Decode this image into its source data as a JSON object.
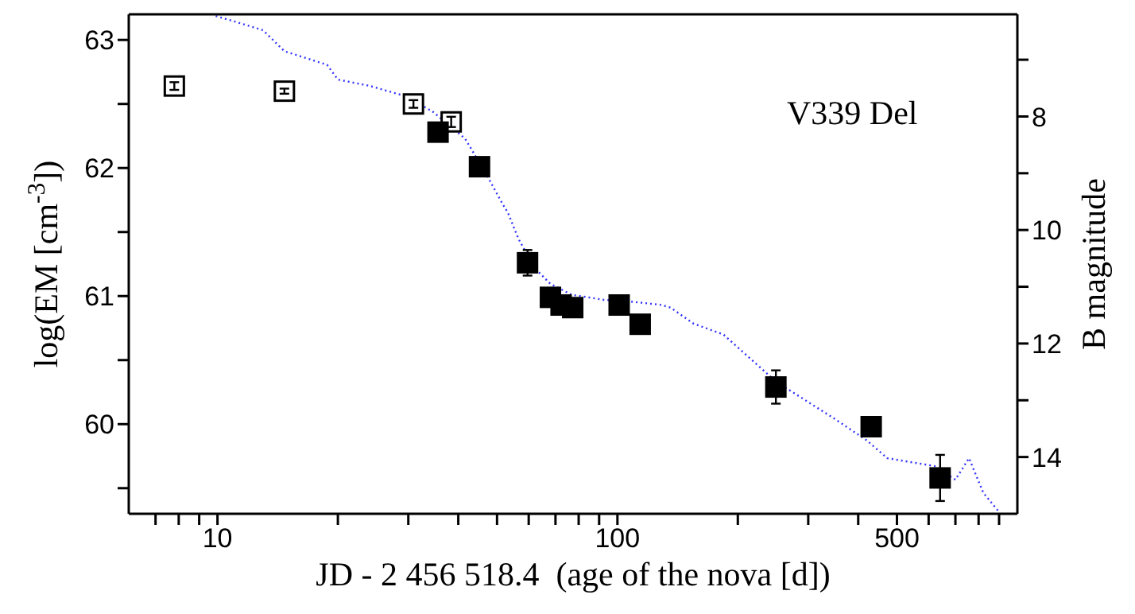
{
  "chart_data": {
    "type": "scatter",
    "xlabel": "JD - 2 456 518.4  (age of the nova [d])",
    "ylabel": "log(EM [cm$^{-3}$])",
    "y2label": "B magnitude",
    "annotations": [
      "V339 Del"
    ],
    "log": "x",
    "grid": false,
    "legend": false,
    "marker": "square",
    "xlim": [
      6,
      1000
    ],
    "xticks": [
      {
        "value": 7,
        "label": null
      },
      {
        "value": 8,
        "label": null
      },
      {
        "value": 9,
        "label": null
      },
      10,
      {
        "value": 20,
        "label": null
      },
      {
        "value": 30,
        "label": null
      },
      {
        "value": 40,
        "label": null
      },
      {
        "value": 50,
        "label": null
      },
      {
        "value": 60,
        "label": null
      },
      {
        "value": 70,
        "label": null
      },
      {
        "value": 80,
        "label": null
      },
      {
        "value": 90,
        "label": null
      },
      100,
      {
        "value": 200,
        "label": null
      },
      {
        "value": 300,
        "label": null
      },
      {
        "value": 400,
        "label": null
      },
      500,
      {
        "value": 600,
        "label": null
      },
      {
        "value": 700,
        "label": null
      },
      {
        "value": 800,
        "label": null
      },
      {
        "value": 900,
        "label": null
      }
    ],
    "ylim": [
      59.3,
      63.2
    ],
    "yticks": [
      {
        "value": 59.5,
        "label": null
      },
      60,
      {
        "value": 60.5,
        "label": null
      },
      61,
      {
        "value": 61.5,
        "label": null
      },
      62,
      {
        "value": 62.5,
        "label": null
      },
      63
    ],
    "y2lim": [
      15,
      6.2
    ],
    "y2ticks": [
      {
        "value": 7,
        "label": null
      },
      8,
      {
        "value": 9,
        "label": null
      },
      10,
      {
        "value": 11,
        "label": null
      },
      12,
      {
        "value": 13,
        "label": null
      },
      14
    ],
    "series": [
      {
        "color": "#ffffff",
        "x": [
          7.8,
          14.7,
          30.9,
          38.4
        ],
        "values": [
          62.64,
          62.6,
          62.5,
          62.36
        ],
        "errors": [
          0.03,
          0.02,
          0.03,
          0.04
        ]
      },
      {
        "color": "#000000",
        "x": [
          35.6,
          45.2,
          59.6,
          68,
          72.3,
          77.3,
          101,
          114,
          249,
          431,
          641
        ],
        "values": [
          62.28,
          62.01,
          61.26,
          60.99,
          60.93,
          60.91,
          60.93,
          60.78,
          60.29,
          59.98,
          59.58
        ],
        "errors": [
          null,
          0.05,
          0.1,
          null,
          null,
          null,
          null,
          0.07,
          0.13,
          0.05,
          0.18
        ]
      },
      {
        "type": "line",
        "axis": "y2",
        "color": "#3333ff",
        "line_style": "dotted",
        "marker": "none",
        "x": [
          9.9,
          11.2,
          13,
          14.7,
          18.8,
          20,
          24,
          29.8,
          34.6,
          41.6,
          47.2,
          51.7,
          53.2,
          56.6,
          62.1,
          68,
          76.8,
          92.4,
          107.6,
          129,
          136,
          155,
          184,
          249,
          348,
          419,
          473,
          621,
          700,
          757,
          822,
          903
        ],
        "values": [
          6.23,
          6.34,
          6.48,
          6.85,
          7.09,
          7.35,
          7.46,
          7.65,
          7.92,
          8.39,
          9.04,
          9.55,
          9.69,
          10.16,
          10.67,
          10.95,
          11.14,
          11.23,
          11.26,
          11.32,
          11.37,
          11.65,
          11.84,
          12.67,
          13.32,
          13.7,
          14.02,
          14.16,
          14.4,
          14.02,
          14.63,
          14.98
        ]
      }
    ]
  }
}
